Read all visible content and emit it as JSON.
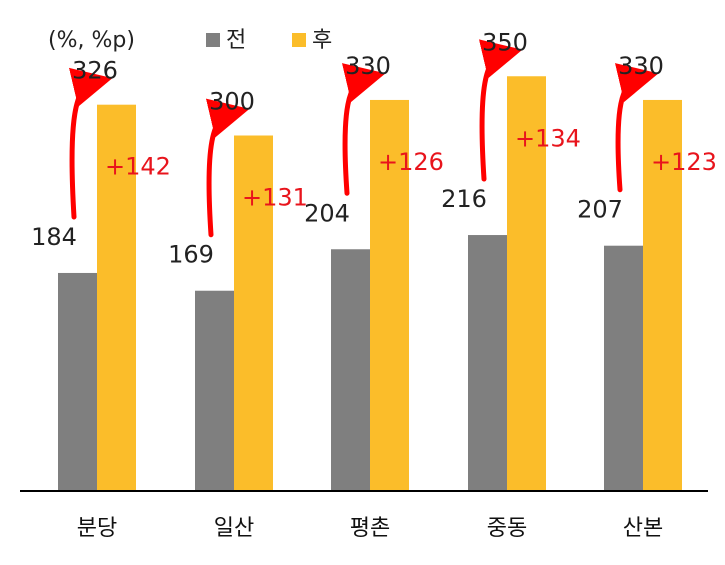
{
  "chart_data": {
    "type": "bar",
    "unit_label": "(%, %p)",
    "categories": [
      "분당",
      "일산",
      "평촌",
      "중동",
      "산본"
    ],
    "series": [
      {
        "name": "전",
        "color": "#7f7f7f",
        "values": [
          184,
          169,
          204,
          216,
          207
        ]
      },
      {
        "name": "후",
        "color": "#fbbd2a",
        "values": [
          326,
          300,
          330,
          350,
          330
        ]
      }
    ],
    "differences": [
      "+142",
      "+131",
      "+126",
      "+134",
      "+123"
    ],
    "difference_color": "#e8141c",
    "arrow_color": "#ff0000",
    "ylim": [
      0,
      450
    ],
    "grid": false,
    "legend_position": "top"
  }
}
